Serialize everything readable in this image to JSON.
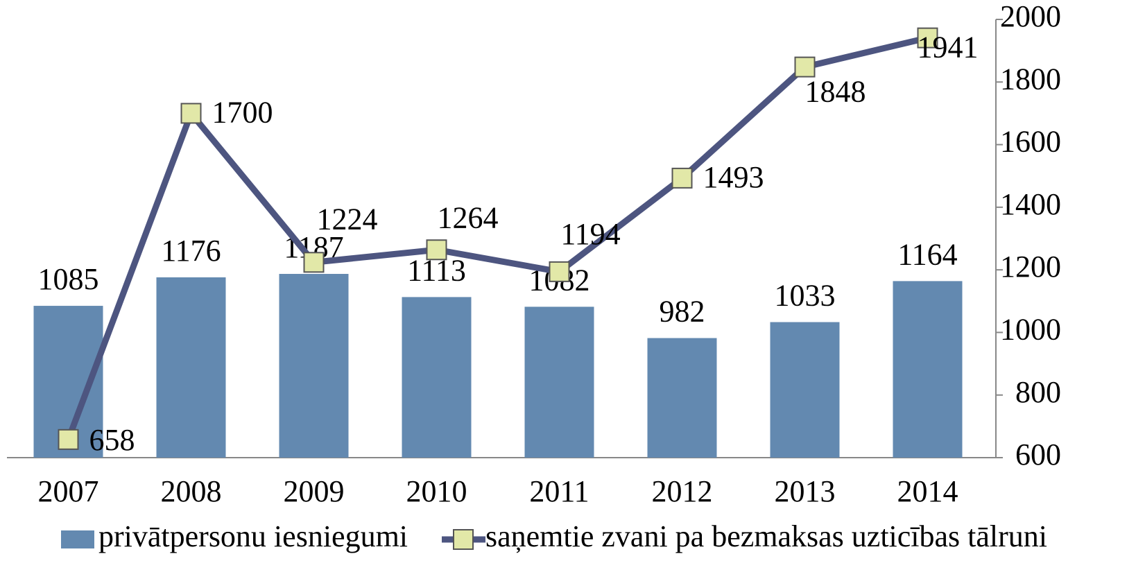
{
  "chart_data": {
    "type": "bar",
    "categories": [
      "2007",
      "2008",
      "2009",
      "2010",
      "2011",
      "2012",
      "2013",
      "2014"
    ],
    "series": [
      {
        "name": "privātpersonu iesniegumi",
        "type": "bar",
        "color": "#6389b0",
        "values": [
          1085,
          1176,
          1187,
          1113,
          1082,
          982,
          1033,
          1164
        ]
      },
      {
        "name": "saņemtie zvani pa bezmaksas uzticības tālruni",
        "type": "line",
        "color": "#4d5580",
        "marker_color": "#e2e8a8",
        "values": [
          658,
          1700,
          1224,
          1264,
          1194,
          1493,
          1848,
          1941
        ]
      }
    ],
    "ylim": [
      600,
      2000
    ],
    "yticks": [
      600,
      800,
      1000,
      1200,
      1400,
      1600,
      1800,
      2000
    ],
    "legend": "bottom"
  }
}
